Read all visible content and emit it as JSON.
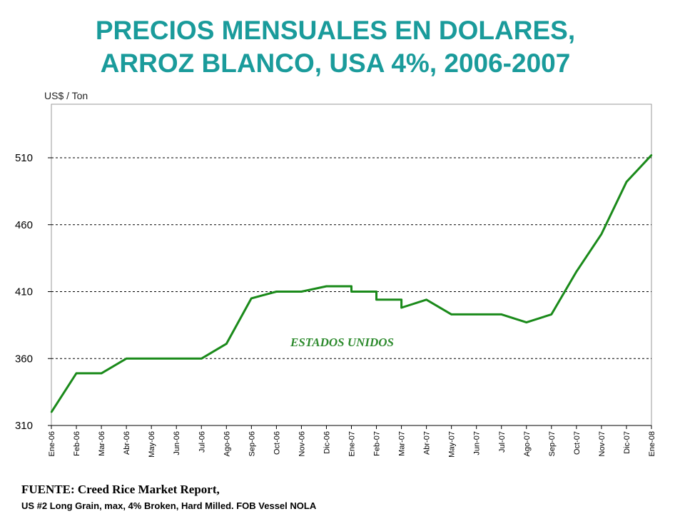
{
  "title_line1": "PRECIOS MENSUALES EN DOLARES,",
  "title_line2": "ARROZ BLANCO, USA 4%, 2006-2007",
  "source_line1": "FUENTE: Creed Rice Market Report,",
  "source_line2": "US #2 Long Grain, max, 4% Broken, Hard Milled. FOB Vessel NOLA",
  "colors": {
    "title": "#1a9b9b",
    "series": "#1a8a1a",
    "annotation": "#2e8b2e"
  },
  "chart_data": {
    "type": "line",
    "ylabel": "US$ / Ton",
    "ylim": [
      310,
      550
    ],
    "yticks": [
      310,
      360,
      410,
      460,
      510
    ],
    "grid": "horizontal-dashed",
    "categories": [
      "Ene-06",
      "Feb-06",
      "Mar-06",
      "Abr-06",
      "May-06",
      "Jun-06",
      "Jul-06",
      "Ago-06",
      "Sep-06",
      "Oct-06",
      "Nov-06",
      "Dic-06",
      "Ene-07",
      "Feb-07",
      "Mar-07",
      "Abr-07",
      "May-07",
      "Jun-07",
      "Jul-07",
      "Ago-07",
      "Sep-07",
      "Oct-07",
      "Nov-07",
      "Dic-07",
      "Ene-08"
    ],
    "series": [
      {
        "name": "ESTADOS UNIDOS",
        "points": [
          {
            "x": 0,
            "y": 320
          },
          {
            "x": 1,
            "y": 349
          },
          {
            "x": 2,
            "y": 349
          },
          {
            "x": 3,
            "y": 360
          },
          {
            "x": 4,
            "y": 360
          },
          {
            "x": 5,
            "y": 360
          },
          {
            "x": 6,
            "y": 360
          },
          {
            "x": 7,
            "y": 371
          },
          {
            "x": 8,
            "y": 405
          },
          {
            "x": 9,
            "y": 410
          },
          {
            "x": 10,
            "y": 410
          },
          {
            "x": 11,
            "y": 414
          },
          {
            "x": 12,
            "y": 414
          },
          {
            "x": 12,
            "y": 410
          },
          {
            "x": 13,
            "y": 410
          },
          {
            "x": 13,
            "y": 404
          },
          {
            "x": 14,
            "y": 404
          },
          {
            "x": 14,
            "y": 398
          },
          {
            "x": 15,
            "y": 404
          },
          {
            "x": 16,
            "y": 393
          },
          {
            "x": 17,
            "y": 393
          },
          {
            "x": 18,
            "y": 393
          },
          {
            "x": 19,
            "y": 387
          },
          {
            "x": 20,
            "y": 393
          },
          {
            "x": 21,
            "y": 425
          },
          {
            "x": 22,
            "y": 453
          },
          {
            "x": 23,
            "y": 492
          },
          {
            "x": 24,
            "y": 512
          }
        ]
      }
    ],
    "annotation": "ESTADOS UNIDOS"
  }
}
